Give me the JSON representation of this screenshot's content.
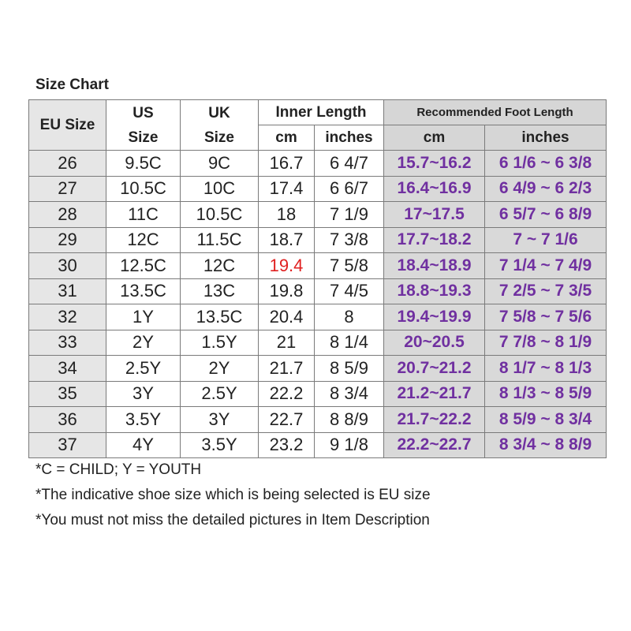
{
  "title": "Size Chart",
  "table": {
    "header": {
      "eu": "EU Size",
      "us": "US Size",
      "uk": "UK Size",
      "inner": "Inner Length",
      "recommended": "Recommended Foot Length",
      "cm": "cm",
      "inches": "inches",
      "rec_cm": "cm",
      "rec_inches": "inches"
    },
    "rows": [
      [
        "26",
        "9.5C",
        "9C",
        "16.7",
        "6 4/7",
        "15.7~16.2",
        "6 1/6 ~ 6 3/8"
      ],
      [
        "27",
        "10.5C",
        "10C",
        "17.4",
        "6 6/7",
        "16.4~16.9",
        "6 4/9 ~ 6 2/3"
      ],
      [
        "28",
        "11C",
        "10.5C",
        "18",
        "7 1/9",
        "17~17.5",
        "6 5/7 ~ 6 8/9"
      ],
      [
        "29",
        "12C",
        "11.5C",
        "18.7",
        "7 3/8",
        "17.7~18.2",
        "7 ~ 7 1/6"
      ],
      [
        "30",
        "12.5C",
        "12C",
        "19.4",
        "7 5/8",
        "18.4~18.9",
        "7 1/4 ~ 7 4/9"
      ],
      [
        "31",
        "13.5C",
        "13C",
        "19.8",
        "7 4/5",
        "18.8~19.3",
        "7 2/5 ~ 7 3/5"
      ],
      [
        "32",
        "1Y",
        "13.5C",
        "20.4",
        "8",
        "19.4~19.9",
        "7 5/8 ~ 7 5/6"
      ],
      [
        "33",
        "2Y",
        "1.5Y",
        "21",
        "8 1/4",
        "20~20.5",
        "7 7/8 ~ 8 1/9"
      ],
      [
        "34",
        "2.5Y",
        "2Y",
        "21.7",
        "8 5/9",
        "20.7~21.2",
        "8 1/7 ~ 8 1/3"
      ],
      [
        "35",
        "3Y",
        "2.5Y",
        "22.2",
        "8 3/4",
        "21.2~21.7",
        "8 1/3 ~ 8 5/9"
      ],
      [
        "36",
        "3.5Y",
        "3Y",
        "22.7",
        "8 8/9",
        "21.7~22.2",
        "8 5/9 ~ 8 3/4"
      ],
      [
        "37",
        "4Y",
        "3.5Y",
        "23.2",
        "9 1/8",
        "22.2~22.7",
        "8 3/4 ~ 8 8/9"
      ]
    ]
  },
  "notes": [
    "*C = CHILD; Y = YOUTH",
    "*The indicative shoe size which is being selected is EU size",
    "*You must not miss the detailed pictures in Item Description"
  ]
}
